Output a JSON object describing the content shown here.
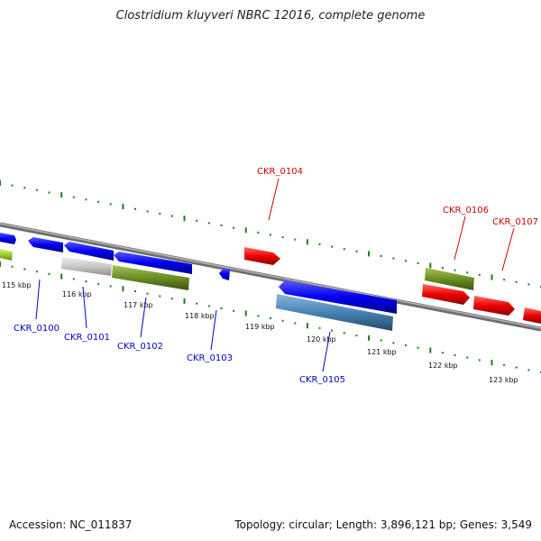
{
  "title": "Clostridium kluyveri NBRC 12016, complete genome",
  "accession_text": "Accession: NC_011837",
  "summary_text": "Topology: circular; Length: 3,896,121 bp; Genes: 3,549",
  "colors": {
    "forward_strand": "#0000ee",
    "reverse_strand": "#ee0000",
    "olive": "#6b8e23",
    "steel_blue": "#4682b4",
    "light_gray": "#c8c8c8",
    "lime": "#9acd32",
    "dots": "#1f7a1f",
    "axis": "#888888"
  },
  "scale": {
    "ticks": [
      {
        "label": "115 kbp"
      },
      {
        "label": "116 kbp"
      },
      {
        "label": "117 kbp"
      },
      {
        "label": "118 kbp"
      },
      {
        "label": "119 kbp"
      },
      {
        "label": "120 kbp"
      },
      {
        "label": "121 kbp"
      },
      {
        "label": "122 kbp"
      },
      {
        "label": "123 kbp"
      }
    ]
  },
  "genes": [
    {
      "name": "CKR_0100",
      "strand": "forward",
      "color": "#0000ee"
    },
    {
      "name": "CKR_0101",
      "strand": "forward",
      "color": "#0000ee"
    },
    {
      "name": "CKR_0102",
      "strand": "forward",
      "color": "#0000ee"
    },
    {
      "name": "CKR_0103",
      "strand": "forward",
      "color": "#0000ee"
    },
    {
      "name": "CKR_0104",
      "strand": "reverse",
      "color": "#ee0000"
    },
    {
      "name": "CKR_0105",
      "strand": "forward",
      "color": "#0000ee"
    },
    {
      "name": "CKR_0106",
      "strand": "reverse",
      "color": "#ee0000"
    },
    {
      "name": "CKR_0107",
      "strand": "reverse",
      "color": "#ee0000"
    }
  ]
}
